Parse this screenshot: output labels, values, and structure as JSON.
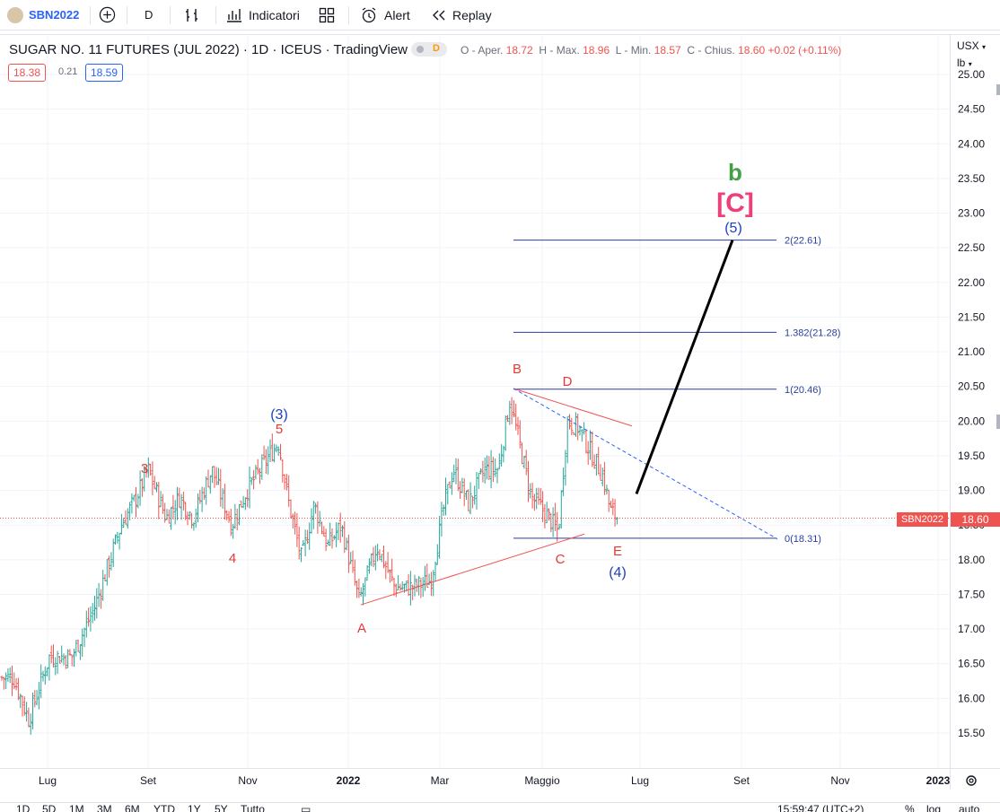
{
  "toolbar": {
    "symbol": "SBN2022",
    "add_icon": "plus-circle-icon",
    "interval": "D",
    "bar_style_icon": "bars-icon",
    "indicators_label": "Indicatori",
    "layouts_icon": "grid-icon",
    "alert_label": "Alert",
    "replay_label": "Replay"
  },
  "legend": {
    "title": "SUGAR NO. 11 FUTURES (JUL 2022) · 1D · ICEUS · TradingView",
    "badge_d": "D",
    "o_label": "O - Aper.",
    "o_value": "18.72",
    "h_label": "H - Max.",
    "h_value": "18.96",
    "l_label": "L - Min.",
    "l_value": "18.57",
    "c_label": "C - Chius.",
    "c_value": "18.60",
    "change": "+0.02 (+0.11%)",
    "bid": "18.38",
    "spread": "0.21",
    "ask": "18.59"
  },
  "price_axis": {
    "currency": "USX",
    "unit": "lb",
    "ticks": [
      "25.00",
      "24.50",
      "24.00",
      "23.50",
      "23.00",
      "22.50",
      "22.00",
      "21.50",
      "21.00",
      "20.50",
      "20.00",
      "19.50",
      "19.00",
      "18.50",
      "18.00",
      "17.50",
      "17.00",
      "16.50",
      "16.00",
      "15.50"
    ],
    "last_label": "SBN2022",
    "last_value": "18.60"
  },
  "time_axis": {
    "labels": [
      "Lug",
      "Set",
      "Nov",
      "2022",
      "Mar",
      "Maggio",
      "Lug",
      "Set",
      "Nov",
      "2023"
    ],
    "settings_icon": "gear-icon"
  },
  "wave_labels": {
    "b": "b",
    "C": "[C]",
    "five_circ": "(5)",
    "three_circ": "(3)",
    "four_circ": "(4)",
    "n3": "3",
    "n4": "4",
    "n5": "5",
    "A": "A",
    "B": "B",
    "C_small": "C",
    "D": "D",
    "E": "E"
  },
  "fib_levels": {
    "l2": "2(22.61)",
    "l1382": "1.382(21.28)",
    "l1": "1(20.46)",
    "l0": "0(18.31)"
  },
  "bottom_bar": {
    "ranges": [
      "1D",
      "5D",
      "1M",
      "3M",
      "6M",
      "YTD",
      "1Y",
      "5Y",
      "Tutto"
    ],
    "calendar_icon": "calendar-icon",
    "time": "15:59:47 (UTC+2)",
    "percent": "%",
    "log": "log",
    "auto": "auto"
  },
  "chart_data": {
    "type": "ohlc",
    "y_unit": "USX/lb",
    "ylim": [
      15.25,
      25.0
    ],
    "x_ticks": [
      "Lug",
      "Set",
      "Nov",
      "2022",
      "Mar",
      "Maggio",
      "Lug",
      "Set",
      "Nov",
      "2023"
    ],
    "series": [
      {
        "date": "2021-06-01",
        "close": 16.2
      },
      {
        "date": "2021-06-20",
        "close": 15.7
      },
      {
        "date": "2021-07-15",
        "close": 16.5
      },
      {
        "date": "2021-08-10",
        "close": 17.4
      },
      {
        "date": "2021-08-25",
        "close": 18.5
      },
      {
        "date": "2021-09-05",
        "close": 19.3
      },
      {
        "date": "2021-09-20",
        "close": 18.6
      },
      {
        "date": "2021-10-10",
        "close": 19.2
      },
      {
        "date": "2021-10-25",
        "close": 18.4
      },
      {
        "date": "2021-11-10",
        "close": 19.7
      },
      {
        "date": "2021-11-25",
        "close": 18.8
      },
      {
        "date": "2021-12-05",
        "close": 18.0
      },
      {
        "date": "2021-12-20",
        "close": 18.6
      },
      {
        "date": "2022-01-05",
        "close": 17.4
      },
      {
        "date": "2022-01-20",
        "close": 18.3
      },
      {
        "date": "2022-02-05",
        "close": 17.6
      },
      {
        "date": "2022-02-20",
        "close": 17.8
      },
      {
        "date": "2022-03-05",
        "close": 19.3
      },
      {
        "date": "2022-03-25",
        "close": 19.0
      },
      {
        "date": "2022-04-10",
        "close": 20.3
      },
      {
        "date": "2022-04-20",
        "close": 19.0
      },
      {
        "date": "2022-05-05",
        "close": 18.4
      },
      {
        "date": "2022-05-15",
        "close": 20.1
      },
      {
        "date": "2022-05-28",
        "close": 19.4
      },
      {
        "date": "2022-06-10",
        "close": 18.6
      }
    ],
    "fib_levels": [
      {
        "ratio": "2",
        "price": 22.61
      },
      {
        "ratio": "1.382",
        "price": 21.28
      },
      {
        "ratio": "1",
        "price": 20.46
      },
      {
        "ratio": "0",
        "price": 18.31
      }
    ],
    "last_price": 18.6,
    "colors": {
      "up": "#26a69a",
      "down": "#ef5350",
      "fib": "#2a3f9e",
      "projection": "#000000",
      "triangle": "#ef5350",
      "wave_blue": "#1f3fbf",
      "wave_red": "#e53935",
      "wave_green": "#43a047",
      "wave_pink": "#ec407a",
      "accent": "#2962ff"
    }
  }
}
